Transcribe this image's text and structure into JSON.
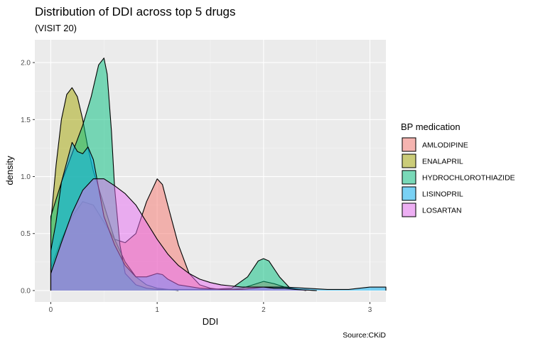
{
  "chart_data": {
    "type": "area",
    "title": "Distribution of DDI across top 5 drugs",
    "subtitle": "(VISIT 20)",
    "xlabel": "DDI",
    "ylabel": "density",
    "caption": "Source:CKiD",
    "xlim": [
      -0.15,
      3.15
    ],
    "ylim": [
      -0.1,
      2.2
    ],
    "x_ticks": [
      0,
      1,
      2,
      3
    ],
    "x_tick_labels": [
      "0",
      "1",
      "2",
      "3"
    ],
    "y_ticks": [
      0.0,
      0.5,
      1.0,
      1.5,
      2.0
    ],
    "y_tick_labels": [
      "0.0",
      "0.5",
      "1.0",
      "1.5",
      "2.0"
    ],
    "grid": true,
    "legend": {
      "title": "BP medication",
      "position": "right",
      "entries": [
        "AMLODIPINE",
        "ENALAPRIL",
        "HYDROCHLOROTHIAZIDE",
        "LISINOPRIL",
        "LOSARTAN"
      ]
    },
    "series": [
      {
        "name": "AMLODIPINE",
        "color": "#F8766D",
        "points": [
          [
            0,
            0.2
          ],
          [
            0.1,
            0.45
          ],
          [
            0.2,
            0.65
          ],
          [
            0.3,
            0.78
          ],
          [
            0.4,
            0.75
          ],
          [
            0.5,
            0.6
          ],
          [
            0.6,
            0.45
          ],
          [
            0.7,
            0.42
          ],
          [
            0.8,
            0.5
          ],
          [
            0.9,
            0.78
          ],
          [
            1.0,
            0.98
          ],
          [
            1.05,
            0.93
          ],
          [
            1.1,
            0.75
          ],
          [
            1.2,
            0.4
          ],
          [
            1.3,
            0.15
          ],
          [
            1.4,
            0.05
          ],
          [
            1.5,
            0.02
          ],
          [
            1.6,
            0.01
          ],
          [
            1.7,
            0.01
          ],
          [
            1.8,
            0.02
          ],
          [
            1.9,
            0.05
          ],
          [
            2.0,
            0.08
          ],
          [
            2.1,
            0.06
          ],
          [
            2.2,
            0.03
          ],
          [
            2.3,
            0.01
          ],
          [
            2.5,
            0.0
          ]
        ]
      },
      {
        "name": "ENALAPRIL",
        "color": "#A3A500",
        "points": [
          [
            0,
            0.6
          ],
          [
            0.05,
            1.1
          ],
          [
            0.1,
            1.5
          ],
          [
            0.15,
            1.72
          ],
          [
            0.2,
            1.78
          ],
          [
            0.25,
            1.7
          ],
          [
            0.3,
            1.5
          ],
          [
            0.35,
            1.25
          ],
          [
            0.4,
            1.05
          ],
          [
            0.45,
            0.9
          ],
          [
            0.5,
            0.75
          ],
          [
            0.55,
            0.6
          ],
          [
            0.6,
            0.45
          ],
          [
            0.7,
            0.25
          ],
          [
            0.8,
            0.12
          ],
          [
            0.9,
            0.05
          ],
          [
            1.0,
            0.02
          ],
          [
            1.2,
            0.0
          ]
        ]
      },
      {
        "name": "HYDROCHLOROTHIAZIDE",
        "color": "#00BF7D",
        "points": [
          [
            0,
            0.65
          ],
          [
            0.05,
            0.8
          ],
          [
            0.1,
            0.95
          ],
          [
            0.2,
            1.2
          ],
          [
            0.3,
            1.45
          ],
          [
            0.38,
            1.7
          ],
          [
            0.45,
            1.98
          ],
          [
            0.5,
            2.04
          ],
          [
            0.53,
            1.9
          ],
          [
            0.57,
            1.4
          ],
          [
            0.6,
            0.9
          ],
          [
            0.65,
            0.4
          ],
          [
            0.7,
            0.15
          ],
          [
            0.8,
            0.05
          ],
          [
            0.9,
            0.02
          ],
          [
            1.0,
            0.01
          ],
          [
            1.2,
            0.01
          ],
          [
            1.5,
            0.01
          ],
          [
            1.7,
            0.02
          ],
          [
            1.85,
            0.12
          ],
          [
            1.95,
            0.26
          ],
          [
            2.0,
            0.28
          ],
          [
            2.05,
            0.26
          ],
          [
            2.15,
            0.12
          ],
          [
            2.25,
            0.02
          ],
          [
            2.4,
            0.0
          ]
        ]
      },
      {
        "name": "LISINOPRIL",
        "color": "#00B0F6",
        "points": [
          [
            0,
            0.35
          ],
          [
            0.05,
            0.6
          ],
          [
            0.1,
            0.95
          ],
          [
            0.2,
            1.3
          ],
          [
            0.25,
            1.22
          ],
          [
            0.3,
            1.2
          ],
          [
            0.35,
            1.26
          ],
          [
            0.4,
            1.15
          ],
          [
            0.45,
            0.9
          ],
          [
            0.5,
            0.65
          ],
          [
            0.6,
            0.4
          ],
          [
            0.7,
            0.22
          ],
          [
            0.8,
            0.12
          ],
          [
            0.9,
            0.12
          ],
          [
            1.0,
            0.15
          ],
          [
            1.05,
            0.14
          ],
          [
            1.1,
            0.1
          ],
          [
            1.2,
            0.05
          ],
          [
            1.4,
            0.02
          ],
          [
            1.6,
            0.01
          ],
          [
            1.8,
            0.01
          ],
          [
            2.0,
            0.03
          ],
          [
            2.2,
            0.03
          ],
          [
            2.4,
            0.02
          ],
          [
            2.6,
            0.01
          ],
          [
            2.8,
            0.01
          ],
          [
            2.9,
            0.02
          ],
          [
            3.0,
            0.03
          ],
          [
            3.1,
            0.03
          ],
          [
            3.15,
            0.03
          ]
        ]
      },
      {
        "name": "LOSARTAN",
        "color": "#E76BF3",
        "points": [
          [
            0,
            0.15
          ],
          [
            0.1,
            0.42
          ],
          [
            0.2,
            0.68
          ],
          [
            0.3,
            0.88
          ],
          [
            0.4,
            0.98
          ],
          [
            0.5,
            0.98
          ],
          [
            0.6,
            0.92
          ],
          [
            0.7,
            0.85
          ],
          [
            0.8,
            0.75
          ],
          [
            0.9,
            0.6
          ],
          [
            1.0,
            0.45
          ],
          [
            1.1,
            0.32
          ],
          [
            1.2,
            0.22
          ],
          [
            1.3,
            0.15
          ],
          [
            1.4,
            0.1
          ],
          [
            1.5,
            0.07
          ],
          [
            1.6,
            0.05
          ],
          [
            1.7,
            0.04
          ],
          [
            1.8,
            0.03
          ],
          [
            1.9,
            0.03
          ],
          [
            2.0,
            0.03
          ],
          [
            2.1,
            0.02
          ],
          [
            2.2,
            0.02
          ],
          [
            2.3,
            0.01
          ],
          [
            2.5,
            0.0
          ]
        ]
      }
    ]
  }
}
